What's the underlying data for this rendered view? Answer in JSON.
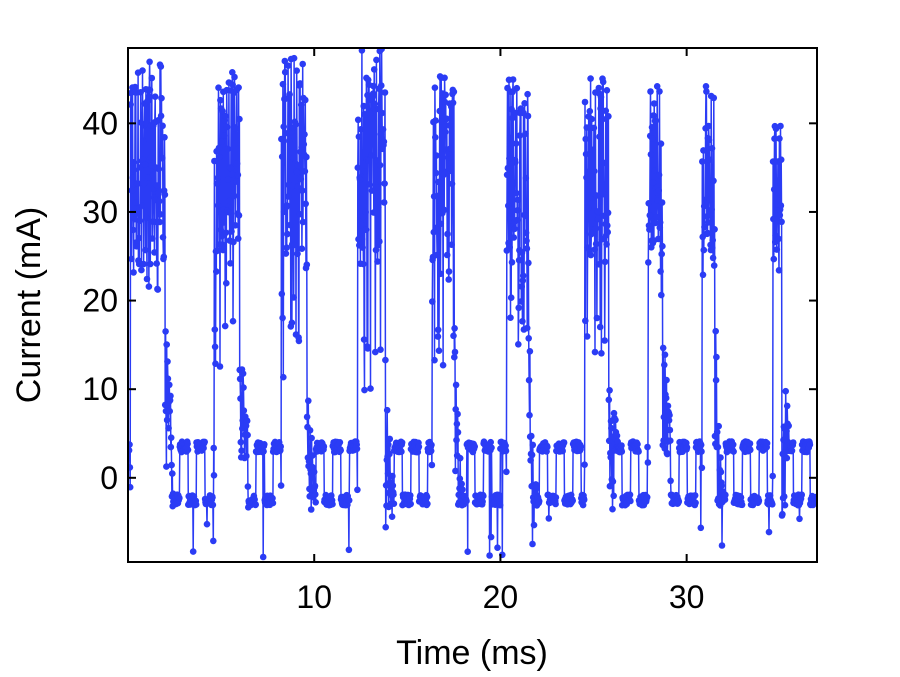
{
  "chart_data": {
    "type": "line",
    "title": "",
    "xlabel": "Time (ms)",
    "ylabel": "Current (mA)",
    "xlim": [
      0,
      37
    ],
    "ylim": [
      -9.5,
      48.5
    ],
    "grid": false,
    "legend": "none",
    "marker": "filled-circle",
    "color": "#2b3cf5",
    "x_ticks": [
      10,
      20,
      30
    ],
    "y_ticks": [
      0,
      10,
      20,
      30,
      40
    ],
    "x_tick_labels": [
      "10",
      "20",
      "30"
    ],
    "y_tick_labels": [
      "0",
      "10",
      "20",
      "30",
      "40"
    ],
    "pulses": [
      {
        "start": 0.1,
        "end": 2.0,
        "peak": 47,
        "low": 19
      },
      {
        "start": 4.6,
        "end": 6.0,
        "peak": 46,
        "low": 10
      },
      {
        "start": 8.2,
        "end": 9.6,
        "peak": 48,
        "low": 11
      },
      {
        "start": 12.3,
        "end": 13.8,
        "peak": 48.5,
        "low": 9
      },
      {
        "start": 16.3,
        "end": 17.5,
        "peak": 46.5,
        "low": 12
      },
      {
        "start": 20.3,
        "end": 21.5,
        "peak": 46,
        "low": 12
      },
      {
        "start": 24.5,
        "end": 25.8,
        "peak": 46,
        "low": 12
      },
      {
        "start": 27.9,
        "end": 28.7,
        "peak": 45.5,
        "low": 26
      },
      {
        "start": 30.8,
        "end": 31.5,
        "peak": 45,
        "low": 25
      },
      {
        "start": 34.6,
        "end": 35.1,
        "peak": 41,
        "low": 26
      }
    ],
    "baseline": {
      "high": 3.5,
      "low": -2.5,
      "min_dip": -9
    }
  }
}
